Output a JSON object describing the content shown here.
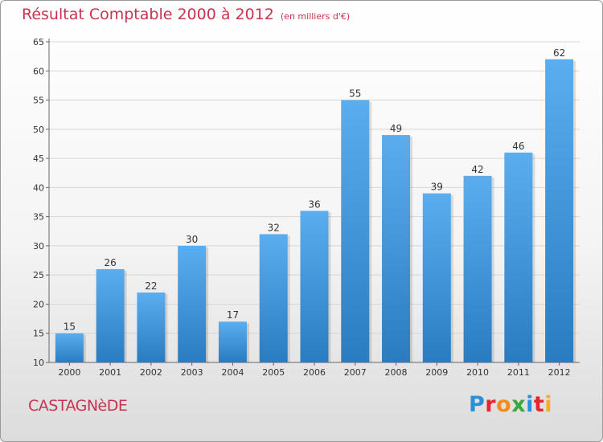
{
  "header": {
    "title": "Résultat Comptable 2000 à 2012",
    "subtitle": "(en milliers d'€)"
  },
  "footer": {
    "commune": "CASTAGNèDE",
    "logo_letters": [
      "P",
      "r",
      "o",
      "x",
      "i",
      "t",
      "i"
    ],
    "logo_colors": [
      "#2a8fd6",
      "#e3262e",
      "#f28c1a",
      "#3aa83a",
      "#2a8fd6",
      "#e3262e",
      "#f2b01a"
    ]
  },
  "chart_data": {
    "type": "bar",
    "title": "Résultat Comptable 2000 à 2012",
    "subtitle": "(en milliers d'€)",
    "categories": [
      "2000",
      "2001",
      "2002",
      "2003",
      "2004",
      "2005",
      "2006",
      "2007",
      "2008",
      "2009",
      "2010",
      "2011",
      "2012"
    ],
    "values": [
      15,
      26,
      22,
      30,
      17,
      32,
      36,
      55,
      49,
      39,
      42,
      46,
      62
    ],
    "ylim": [
      10,
      65
    ],
    "yticks": [
      10,
      15,
      20,
      25,
      30,
      35,
      40,
      45,
      50,
      55,
      60,
      65
    ],
    "grid": true,
    "bar_color_top": "#5aaef0",
    "bar_color_bottom": "#2a7cc0",
    "data_labels": true
  }
}
